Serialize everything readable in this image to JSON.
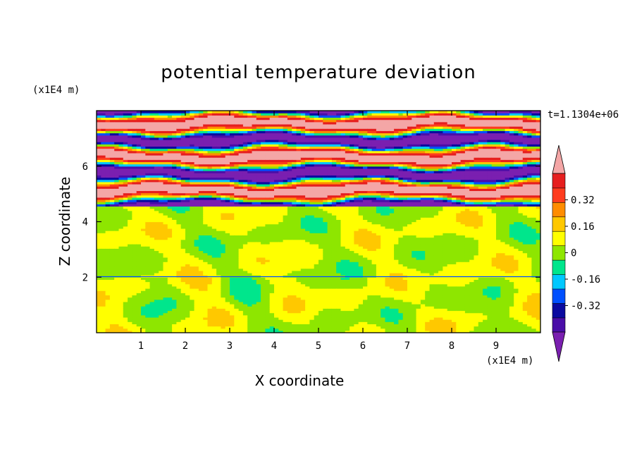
{
  "chart_data": {
    "type": "heatmap",
    "title": "potential temperature deviation",
    "xlabel": "X coordinate",
    "ylabel": "Z coordinate",
    "x_unit": "(x1E4 m)",
    "y_unit": "(x1E4 m)",
    "timestamp": "t=1.1304e+06",
    "xlim": [
      0,
      10
    ],
    "ylim": [
      0,
      8
    ],
    "x_ticks": [
      "1",
      "2",
      "3",
      "4",
      "5",
      "6",
      "7",
      "8",
      "9"
    ],
    "y_ticks": [
      "2",
      "4",
      "6"
    ],
    "colorbar": {
      "levels": [
        -0.48,
        -0.4,
        -0.32,
        -0.24,
        -0.16,
        -0.08,
        0,
        0.08,
        0.16,
        0.24,
        0.32,
        0.4,
        0.48
      ],
      "labels": [
        "0.32",
        "0.16",
        "0",
        "-0.16",
        "-0.32"
      ],
      "label_values": [
        0.32,
        0.16,
        0,
        -0.16,
        -0.32
      ],
      "extend": "both",
      "under_color": "#7a1fb0",
      "over_color": "#f4a6a6",
      "colors_low_to_high": [
        "#4a0ea8",
        "#0a0aa0",
        "#0050ff",
        "#00c8ff",
        "#00e68c",
        "#8ee600",
        "#ffff00",
        "#ffc800",
        "#ff8c00",
        "#ff3c1e",
        "#e61e1e"
      ]
    },
    "regions": [
      {
        "z_range": [
          4.6,
          8.0
        ],
        "description_values": [
          -0.48,
          0.48
        ],
        "pattern": "alternating layers"
      },
      {
        "z_range": [
          0,
          4.6
        ],
        "description_values": [
          -0.08,
          0.08
        ],
        "pattern": "weak mixed"
      }
    ]
  }
}
